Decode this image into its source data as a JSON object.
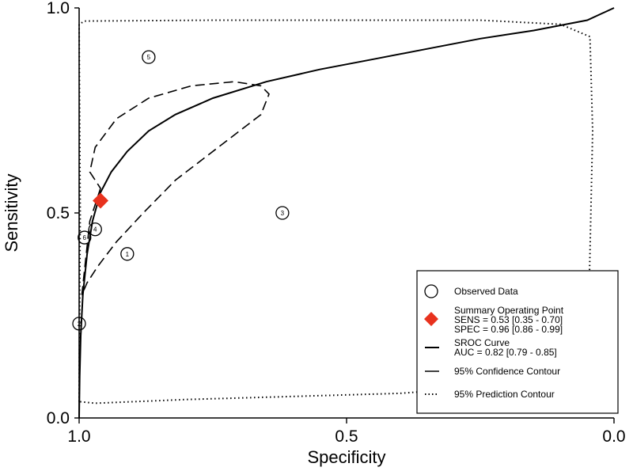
{
  "chart_data": {
    "type": "scatter",
    "xlabel": "Specificity",
    "ylabel": "Sensitivity",
    "xlim": [
      1.0,
      0.0
    ],
    "ylim": [
      0.0,
      1.0
    ],
    "x_ticks": [
      "1.0",
      "0.5",
      "0.0"
    ],
    "y_ticks": [
      "0.0",
      "0.5",
      "1.0"
    ],
    "grid": false,
    "legend_position": "bottom-right",
    "observed_data": [
      {
        "label": "1",
        "specificity": 0.91,
        "sensitivity": 0.4
      },
      {
        "label": "2",
        "specificity": 1.0,
        "sensitivity": 0.23
      },
      {
        "label": "3",
        "specificity": 0.62,
        "sensitivity": 0.5
      },
      {
        "label": "4",
        "specificity": 0.97,
        "sensitivity": 0.46
      },
      {
        "label": "5",
        "specificity": 0.87,
        "sensitivity": 0.88
      },
      {
        "label": "6",
        "specificity": 0.99,
        "sensitivity": 0.44
      }
    ],
    "summary_point": {
      "specificity": 0.96,
      "sensitivity": 0.53,
      "color": "#e8321e"
    },
    "sroc_curve": [
      [
        1.0,
        0.0
      ],
      [
        0.999,
        0.1
      ],
      [
        0.997,
        0.2
      ],
      [
        0.993,
        0.3
      ],
      [
        0.985,
        0.4
      ],
      [
        0.975,
        0.48
      ],
      [
        0.96,
        0.55
      ],
      [
        0.94,
        0.6
      ],
      [
        0.91,
        0.65
      ],
      [
        0.87,
        0.7
      ],
      [
        0.82,
        0.74
      ],
      [
        0.75,
        0.78
      ],
      [
        0.65,
        0.82
      ],
      [
        0.55,
        0.85
      ],
      [
        0.45,
        0.875
      ],
      [
        0.35,
        0.9
      ],
      [
        0.25,
        0.925
      ],
      [
        0.15,
        0.945
      ],
      [
        0.05,
        0.97
      ],
      [
        0.0,
        1.0
      ]
    ],
    "confidence_contour": [
      [
        0.96,
        0.56
      ],
      [
        0.98,
        0.48
      ],
      [
        0.995,
        0.3
      ],
      [
        0.985,
        0.33
      ],
      [
        0.965,
        0.37
      ],
      [
        0.93,
        0.43
      ],
      [
        0.88,
        0.5
      ],
      [
        0.82,
        0.58
      ],
      [
        0.74,
        0.66
      ],
      [
        0.66,
        0.74
      ],
      [
        0.645,
        0.79
      ],
      [
        0.66,
        0.81
      ],
      [
        0.71,
        0.82
      ],
      [
        0.79,
        0.81
      ],
      [
        0.87,
        0.78
      ],
      [
        0.93,
        0.73
      ],
      [
        0.97,
        0.66
      ],
      [
        0.98,
        0.6
      ],
      [
        0.96,
        0.56
      ]
    ],
    "prediction_contour": [
      [
        1.0,
        0.04
      ],
      [
        0.998,
        0.5
      ],
      [
        1.0,
        0.96
      ],
      [
        0.99,
        0.968
      ],
      [
        0.75,
        0.97
      ],
      [
        0.5,
        0.97
      ],
      [
        0.25,
        0.97
      ],
      [
        0.1,
        0.96
      ],
      [
        0.045,
        0.93
      ],
      [
        0.04,
        0.7
      ],
      [
        0.045,
        0.4
      ],
      [
        0.05,
        0.12
      ],
      [
        0.1,
        0.09
      ],
      [
        0.4,
        0.06
      ],
      [
        0.8,
        0.045
      ],
      [
        0.97,
        0.036
      ],
      [
        1.0,
        0.04
      ]
    ],
    "legend": {
      "observed": "Observed Data",
      "summary_title": "Summary Operating Point",
      "summary_sens": "SENS = 0.53 [0.35 - 0.70]",
      "summary_spec": "SPEC = 0.96 [0.86 - 0.99]",
      "sroc_title": "SROC Curve",
      "sroc_auc": "AUC = 0.82 [0.79 - 0.85]",
      "confidence": "95% Confidence Contour",
      "prediction": "95% Prediction Contour"
    }
  }
}
